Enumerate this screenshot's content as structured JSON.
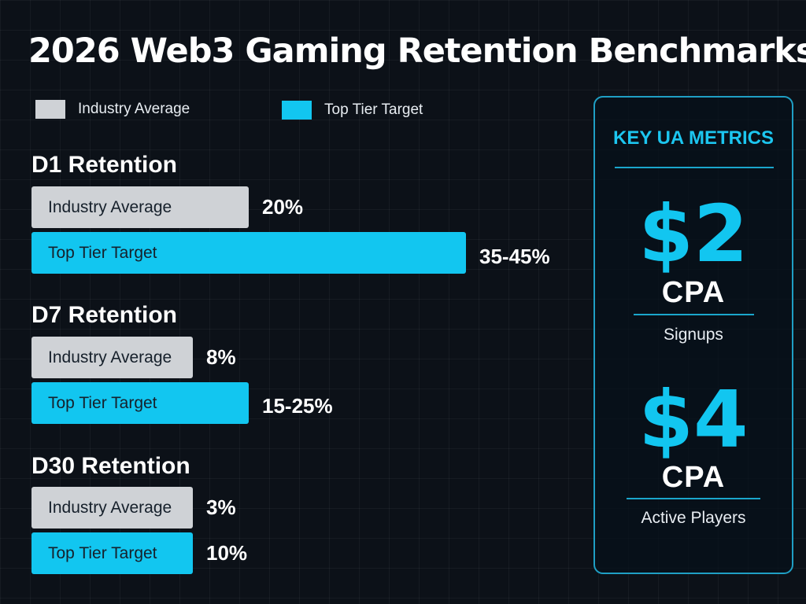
{
  "title": "2026 Web3 Gaming Retention Benchmarks",
  "colors": {
    "industry_average": "#cfd2d6",
    "top_tier_target": "#12c6f0",
    "panel_accent": "#1cc6f0",
    "background": "#0c1118"
  },
  "chart_data": {
    "type": "bar",
    "orientation": "horizontal",
    "title": "2026 Web3 Gaming Retention Benchmarks",
    "legend": [
      "Industry Average",
      "Top Tier Target"
    ],
    "legend_position": "top-left",
    "grid": false,
    "groups": [
      {
        "title": "D1 Retention",
        "bars": [
          {
            "series": "Industry Average",
            "label": "Industry Average",
            "value": 20,
            "display": "20%"
          },
          {
            "series": "Top Tier Target",
            "label": "Top Tier Target",
            "value": 40,
            "range": [
              35,
              45
            ],
            "display": "35-45%"
          }
        ]
      },
      {
        "title": "D7 Retention",
        "bars": [
          {
            "series": "Industry Average",
            "label": "Industry Average",
            "value": 8,
            "display": "8%"
          },
          {
            "series": "Top Tier Target",
            "label": "Top Tier Target",
            "value": 20,
            "range": [
              15,
              25
            ],
            "display": "15-25%"
          }
        ]
      },
      {
        "title": "D30 Retention",
        "bars": [
          {
            "series": "Industry Average",
            "label": "Industry Average",
            "value": 3,
            "display": "3%"
          },
          {
            "series": "Top Tier Target",
            "label": "Top Tier Target",
            "value": 10,
            "display": "10%"
          }
        ]
      }
    ]
  },
  "ua_panel": {
    "title": "KEY UA METRICS",
    "metrics": [
      {
        "value": "$2",
        "unit": "CPA",
        "description": "Signups"
      },
      {
        "value": "$4",
        "unit": "CPA",
        "description": "Active Players"
      }
    ]
  }
}
